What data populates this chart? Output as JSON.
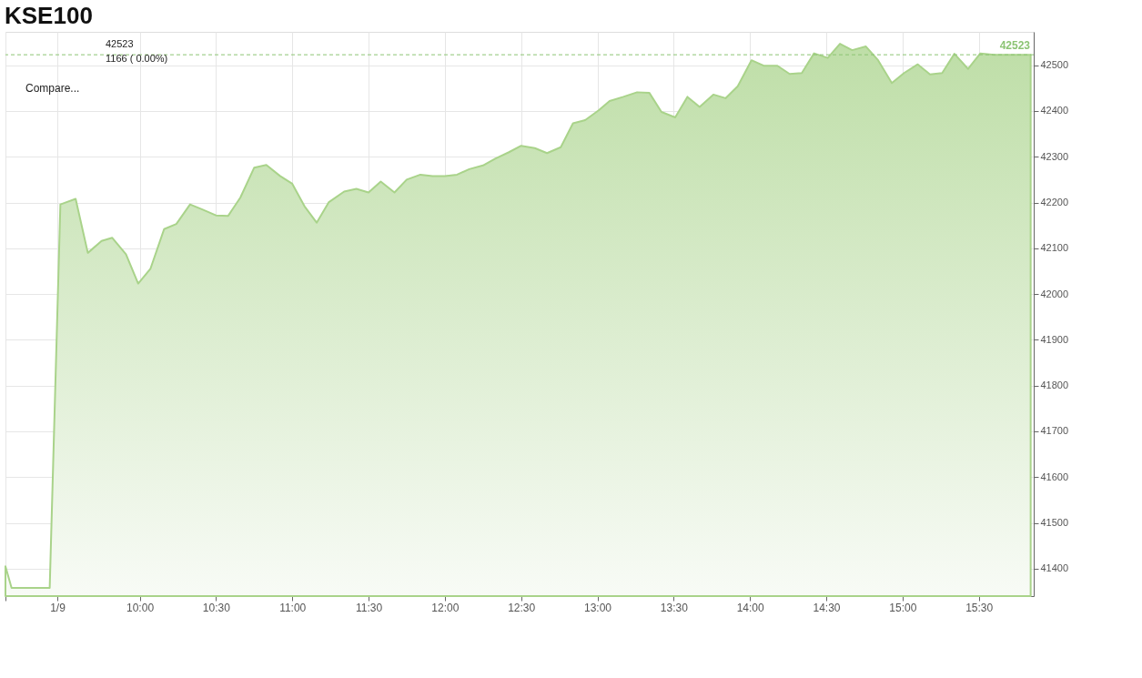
{
  "chart_data": {
    "type": "area",
    "title": "KSE100",
    "annotations": [
      "42523",
      "1166 ( 0.00%)",
      "Compare..."
    ],
    "x": [
      9.12,
      9.16,
      9.41,
      9.48,
      9.58,
      9.66,
      9.75,
      9.82,
      9.91,
      9.99,
      10.07,
      10.16,
      10.24,
      10.33,
      10.41,
      10.5,
      10.58,
      10.66,
      10.75,
      10.83,
      10.92,
      11.0,
      11.08,
      11.16,
      11.24,
      11.34,
      11.42,
      11.5,
      11.58,
      11.67,
      11.75,
      11.84,
      11.92,
      12.0,
      12.08,
      12.16,
      12.25,
      12.33,
      12.42,
      12.5,
      12.59,
      12.67,
      12.76,
      12.84,
      12.92,
      13.01,
      13.08,
      13.17,
      13.26,
      13.34,
      13.42,
      13.51,
      13.59,
      13.67,
      13.76,
      13.84,
      13.92,
      14.01,
      14.09,
      14.18,
      14.26,
      14.34,
      14.42,
      14.51,
      14.59,
      14.67,
      14.76,
      14.84,
      14.93,
      15.01,
      15.1,
      15.18,
      15.26,
      15.34,
      15.43,
      15.51,
      15.6,
      15.84
    ],
    "series": [
      {
        "color": "#a9d38a",
        "values": [
          41405,
          41358,
          41358,
          42196,
          42208,
          42090,
          42116,
          42123,
          42087,
          42023,
          42055,
          42142,
          42153,
          42196,
          42185,
          42172,
          42171,
          42211,
          42276,
          42282,
          42258,
          42241,
          42192,
          42156,
          42201,
          42224,
          42230,
          42222,
          42246,
          42222,
          42250,
          42261,
          42258,
          42258,
          42261,
          42273,
          42281,
          42296,
          42310,
          42324,
          42319,
          42308,
          42321,
          42373,
          42380,
          42402,
          42422,
          42431,
          42441,
          42440,
          42398,
          42386,
          42431,
          42409,
          42436,
          42428,
          42454,
          42511,
          42499,
          42499,
          42481,
          42483,
          42526,
          42516,
          42547,
          42533,
          42541,
          42511,
          42461,
          42483,
          42502,
          42480,
          42483,
          42525,
          42492,
          42526,
          42523,
          42523
        ]
      }
    ],
    "xlim": [
      9.12,
      15.86
    ],
    "xticks": [
      {
        "value": 9.12,
        "label": null
      },
      {
        "value": 9.46,
        "label": "1/9"
      },
      {
        "value": 10,
        "label": "10:00"
      },
      {
        "value": 10.5,
        "label": "10:30"
      },
      {
        "value": 11,
        "label": "11:00"
      },
      {
        "value": 11.5,
        "label": "11:30"
      },
      {
        "value": 12,
        "label": "12:00"
      },
      {
        "value": 12.5,
        "label": "12:30"
      },
      {
        "value": 13,
        "label": "13:00"
      },
      {
        "value": 13.5,
        "label": "13:30"
      },
      {
        "value": 14,
        "label": "14:00"
      },
      {
        "value": 14.5,
        "label": "14:30"
      },
      {
        "value": 15,
        "label": "15:00"
      },
      {
        "value": 15.5,
        "label": "15:30"
      }
    ],
    "ylim": [
      41340,
      42573
    ],
    "yticks": [
      41400,
      41500,
      41600,
      41700,
      41800,
      41900,
      42000,
      42100,
      42200,
      42300,
      42400,
      42500
    ],
    "ref_lines": [
      {
        "axis": "y",
        "value": 42523,
        "label": "42523",
        "color": "#8cc474",
        "line_style": "dashed"
      }
    ],
    "grid": true
  }
}
